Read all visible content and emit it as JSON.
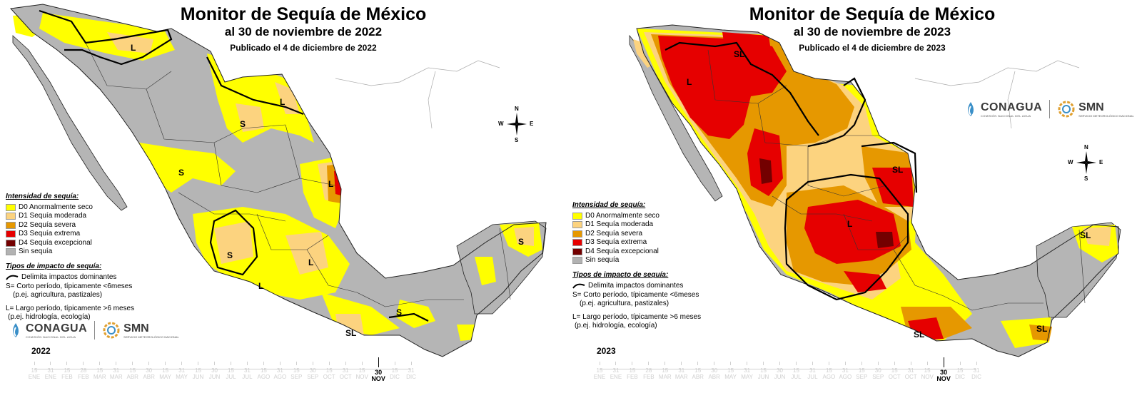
{
  "legend": {
    "intensity_title": "Intensidad de sequía:",
    "categories": [
      {
        "label": "D0 Anormalmente seco",
        "color": "#ffff00"
      },
      {
        "label": "D1 Sequía moderada",
        "color": "#fcd37f"
      },
      {
        "label": "D2 Sequía severa",
        "color": "#e69800"
      },
      {
        "label": "D3 Sequía extrema",
        "color": "#e60000"
      },
      {
        "label": "D4 Sequía excepcional",
        "color": "#730000"
      },
      {
        "label": "Sin sequía",
        "color": "#b2b2b2"
      }
    ],
    "impact_title": "Tipos de impacto de sequía:",
    "impact_line": "Delimita impactos dominantes",
    "short_a": "S= Corto período, típicamente <6meses",
    "short_b": "(p.ej. agricultura, pastizales)",
    "long_a": "L= Largo período, típicamente >6 meses",
    "long_b": "(p.ej. hidrología, ecología)"
  },
  "compass": {
    "n": "N",
    "s": "S",
    "e": "E",
    "w": "W"
  },
  "logos": {
    "conagua": "CONAGUA",
    "conagua_sub": "COMISIÓN NACIONAL DEL AGUA",
    "smn": "SMN",
    "smn_sub": "SERVICIO METEOROLÓGICO NACIONAL"
  },
  "timeline": {
    "ticks": [
      {
        "day": "15",
        "month": "ENE"
      },
      {
        "day": "31",
        "month": "ENE"
      },
      {
        "day": "15",
        "month": "FEB"
      },
      {
        "day": "28",
        "month": "FEB"
      },
      {
        "day": "15",
        "month": "MAR"
      },
      {
        "day": "31",
        "month": "MAR"
      },
      {
        "day": "15",
        "month": "ABR"
      },
      {
        "day": "30",
        "month": "ABR"
      },
      {
        "day": "15",
        "month": "MAY"
      },
      {
        "day": "31",
        "month": "MAY"
      },
      {
        "day": "15",
        "month": "JUN"
      },
      {
        "day": "30",
        "month": "JUN"
      },
      {
        "day": "15",
        "month": "JUL"
      },
      {
        "day": "31",
        "month": "JUL"
      },
      {
        "day": "15",
        "month": "AGO"
      },
      {
        "day": "31",
        "month": "AGO"
      },
      {
        "day": "15",
        "month": "SEP"
      },
      {
        "day": "30",
        "month": "SEP"
      },
      {
        "day": "15",
        "month": "OCT"
      },
      {
        "day": "31",
        "month": "OCT"
      },
      {
        "day": "15",
        "month": "NOV"
      },
      {
        "day": "30",
        "month": "NOV"
      },
      {
        "day": "15",
        "month": "DIC"
      },
      {
        "day": "31",
        "month": "DIC"
      }
    ],
    "current_index": 21
  },
  "maps": [
    {
      "title": "Monitor de Sequía de México",
      "date_line": "al 30 de noviembre de 2022",
      "published": "Publicado el 4 de diciembre de 2022",
      "year": "2022",
      "region_labels": [
        "L",
        "L",
        "S",
        "S",
        "L",
        "S",
        "L",
        "L",
        "S",
        "S",
        "SL"
      ]
    },
    {
      "title": "Monitor de Sequía de México",
      "date_line": "al 30 de noviembre de 2023",
      "published": "Publicado el 4 de diciembre de 2023",
      "year": "2023",
      "region_labels": [
        "SL",
        "L",
        "SL",
        "L",
        "SL",
        "SL",
        "SL"
      ]
    }
  ]
}
